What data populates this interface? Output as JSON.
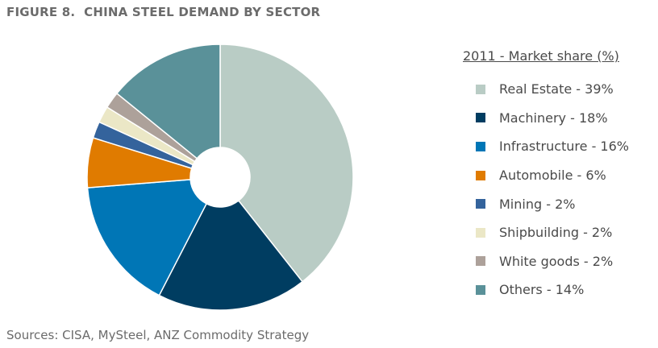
{
  "figure": {
    "title": "FIGURE 8.  CHINA STEEL DEMAND BY SECTOR",
    "source": "Sources: CISA, MySteel, ANZ Commodity Strategy"
  },
  "chart_data": {
    "type": "pie",
    "title": "CHINA STEEL DEMAND BY SECTOR",
    "legend_title": "2011 - Market share (%)",
    "legend_position": "right",
    "slices": [
      {
        "name": "Real Estate",
        "value": 39,
        "label": "Real Estate - 39%",
        "color": "#b9ccc5"
      },
      {
        "name": "Machinery",
        "value": 18,
        "label": "Machinery - 18%",
        "color": "#003d61"
      },
      {
        "name": "Infrastructure",
        "value": 16,
        "label": "Infrastructure - 16%",
        "color": "#0076b6"
      },
      {
        "name": "Automobile",
        "value": 6,
        "label": "Automobile - 6%",
        "color": "#e07b00"
      },
      {
        "name": "Mining",
        "value": 2,
        "label": "Mining - 2%",
        "color": "#34639c"
      },
      {
        "name": "Shipbuilding",
        "value": 2,
        "label": "Shipbuilding - 2%",
        "color": "#ebe7c6"
      },
      {
        "name": "White goods",
        "value": 2,
        "label": "White goods - 2%",
        "color": "#ada19a"
      },
      {
        "name": "Others",
        "value": 14,
        "label": "Others - 14%",
        "color": "#5a9199"
      }
    ]
  }
}
